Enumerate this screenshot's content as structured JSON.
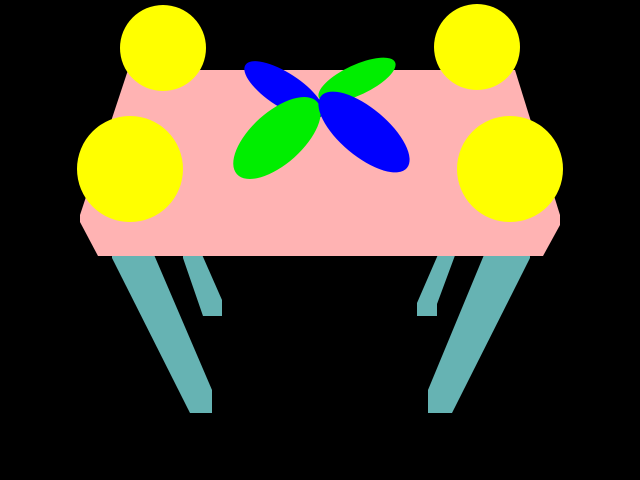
{
  "scene": {
    "background_color": "#000000",
    "table": {
      "top_color": "#ffb3b3",
      "leg_color": "#66b3b3"
    },
    "balls": {
      "color": "#ffff00",
      "count": 4
    },
    "pinwheel": {
      "colors": [
        "#0000ff",
        "#00ee00"
      ],
      "blade_count": 4
    }
  }
}
